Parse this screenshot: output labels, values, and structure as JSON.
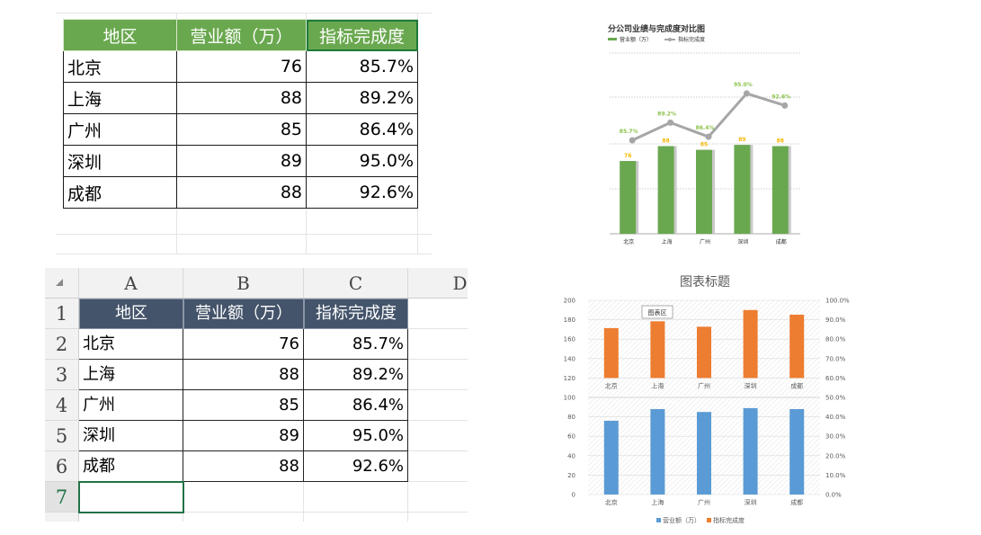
{
  "table": {
    "headers": [
      "地区",
      "营业额（万）",
      "指标完成度"
    ],
    "rows": [
      [
        "北京",
        "76",
        "85.7%"
      ],
      [
        "上海",
        "88",
        "89.2%"
      ],
      [
        "广州",
        "85",
        "86.4%"
      ],
      [
        "深圳",
        "89",
        "95.0%"
      ],
      [
        "成都",
        "88",
        "92.6%"
      ]
    ]
  },
  "sheet": {
    "columns": [
      "A",
      "B",
      "C",
      "D"
    ],
    "row_numbers": [
      "1",
      "2",
      "3",
      "4",
      "5",
      "6",
      "7"
    ]
  },
  "colors": {
    "green": "#6aa84f",
    "grey": "#a6a6a6",
    "yellow": "#f5b800",
    "blue": "#5b9bd5",
    "orange": "#ed7d31",
    "navy": "#44546a"
  },
  "chart_data": [
    {
      "type": "bar",
      "title": "分公司业绩与完成度对比图",
      "categories": [
        "北京",
        "上海",
        "广州",
        "深圳",
        "成都"
      ],
      "series": [
        {
          "name": "营业额（万）",
          "type": "bar",
          "values": [
            76,
            88,
            85,
            89,
            88
          ],
          "data_labels": [
            "76",
            "88",
            "85",
            "89",
            "88"
          ]
        },
        {
          "name": "指标完成度",
          "type": "line",
          "values": [
            85.7,
            89.2,
            86.4,
            95.0,
            92.6
          ],
          "data_labels": [
            "85.7%",
            "89.2%",
            "86.4%",
            "95.0%",
            "92.6%"
          ]
        }
      ],
      "legend": "top-left",
      "grid": true
    },
    {
      "type": "bar",
      "title": "图表标题",
      "categories": [
        "北京",
        "上海",
        "广州",
        "深圳",
        "成都"
      ],
      "series": [
        {
          "name": "营业额（万）",
          "axis": "left",
          "values": [
            76,
            88,
            85,
            89,
            88
          ]
        },
        {
          "name": "指标完成度",
          "axis": "right",
          "values": [
            85.7,
            89.2,
            86.4,
            95.0,
            92.6
          ]
        }
      ],
      "y_ticks": [
        "0",
        "20",
        "40",
        "60",
        "80",
        "100",
        "120",
        "140",
        "160",
        "180",
        "200"
      ],
      "y2_ticks": [
        "0.0%",
        "10.0%",
        "20.0%",
        "30.0%",
        "40.0%",
        "50.0%",
        "60.0%",
        "70.0%",
        "80.0%",
        "90.0%",
        "100.0%"
      ],
      "ylim": [
        0,
        200
      ],
      "y2lim": [
        0,
        100
      ],
      "tooltip": "图表区",
      "legend": "bottom",
      "grid": true
    }
  ]
}
